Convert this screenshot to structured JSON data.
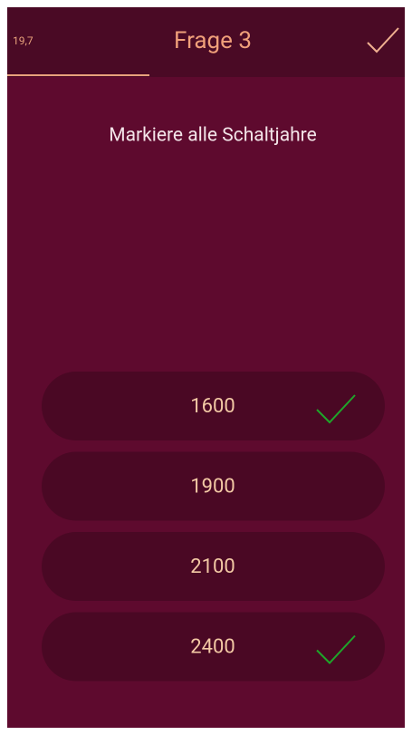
{
  "header": {
    "timer": "19,7",
    "title": "Frage 3"
  },
  "question": "Markiere alle Schaltjahre",
  "options": [
    {
      "label": "1600",
      "checked": true
    },
    {
      "label": "1900",
      "checked": false
    },
    {
      "label": "2100",
      "checked": false
    },
    {
      "label": "2400",
      "checked": true
    }
  ]
}
